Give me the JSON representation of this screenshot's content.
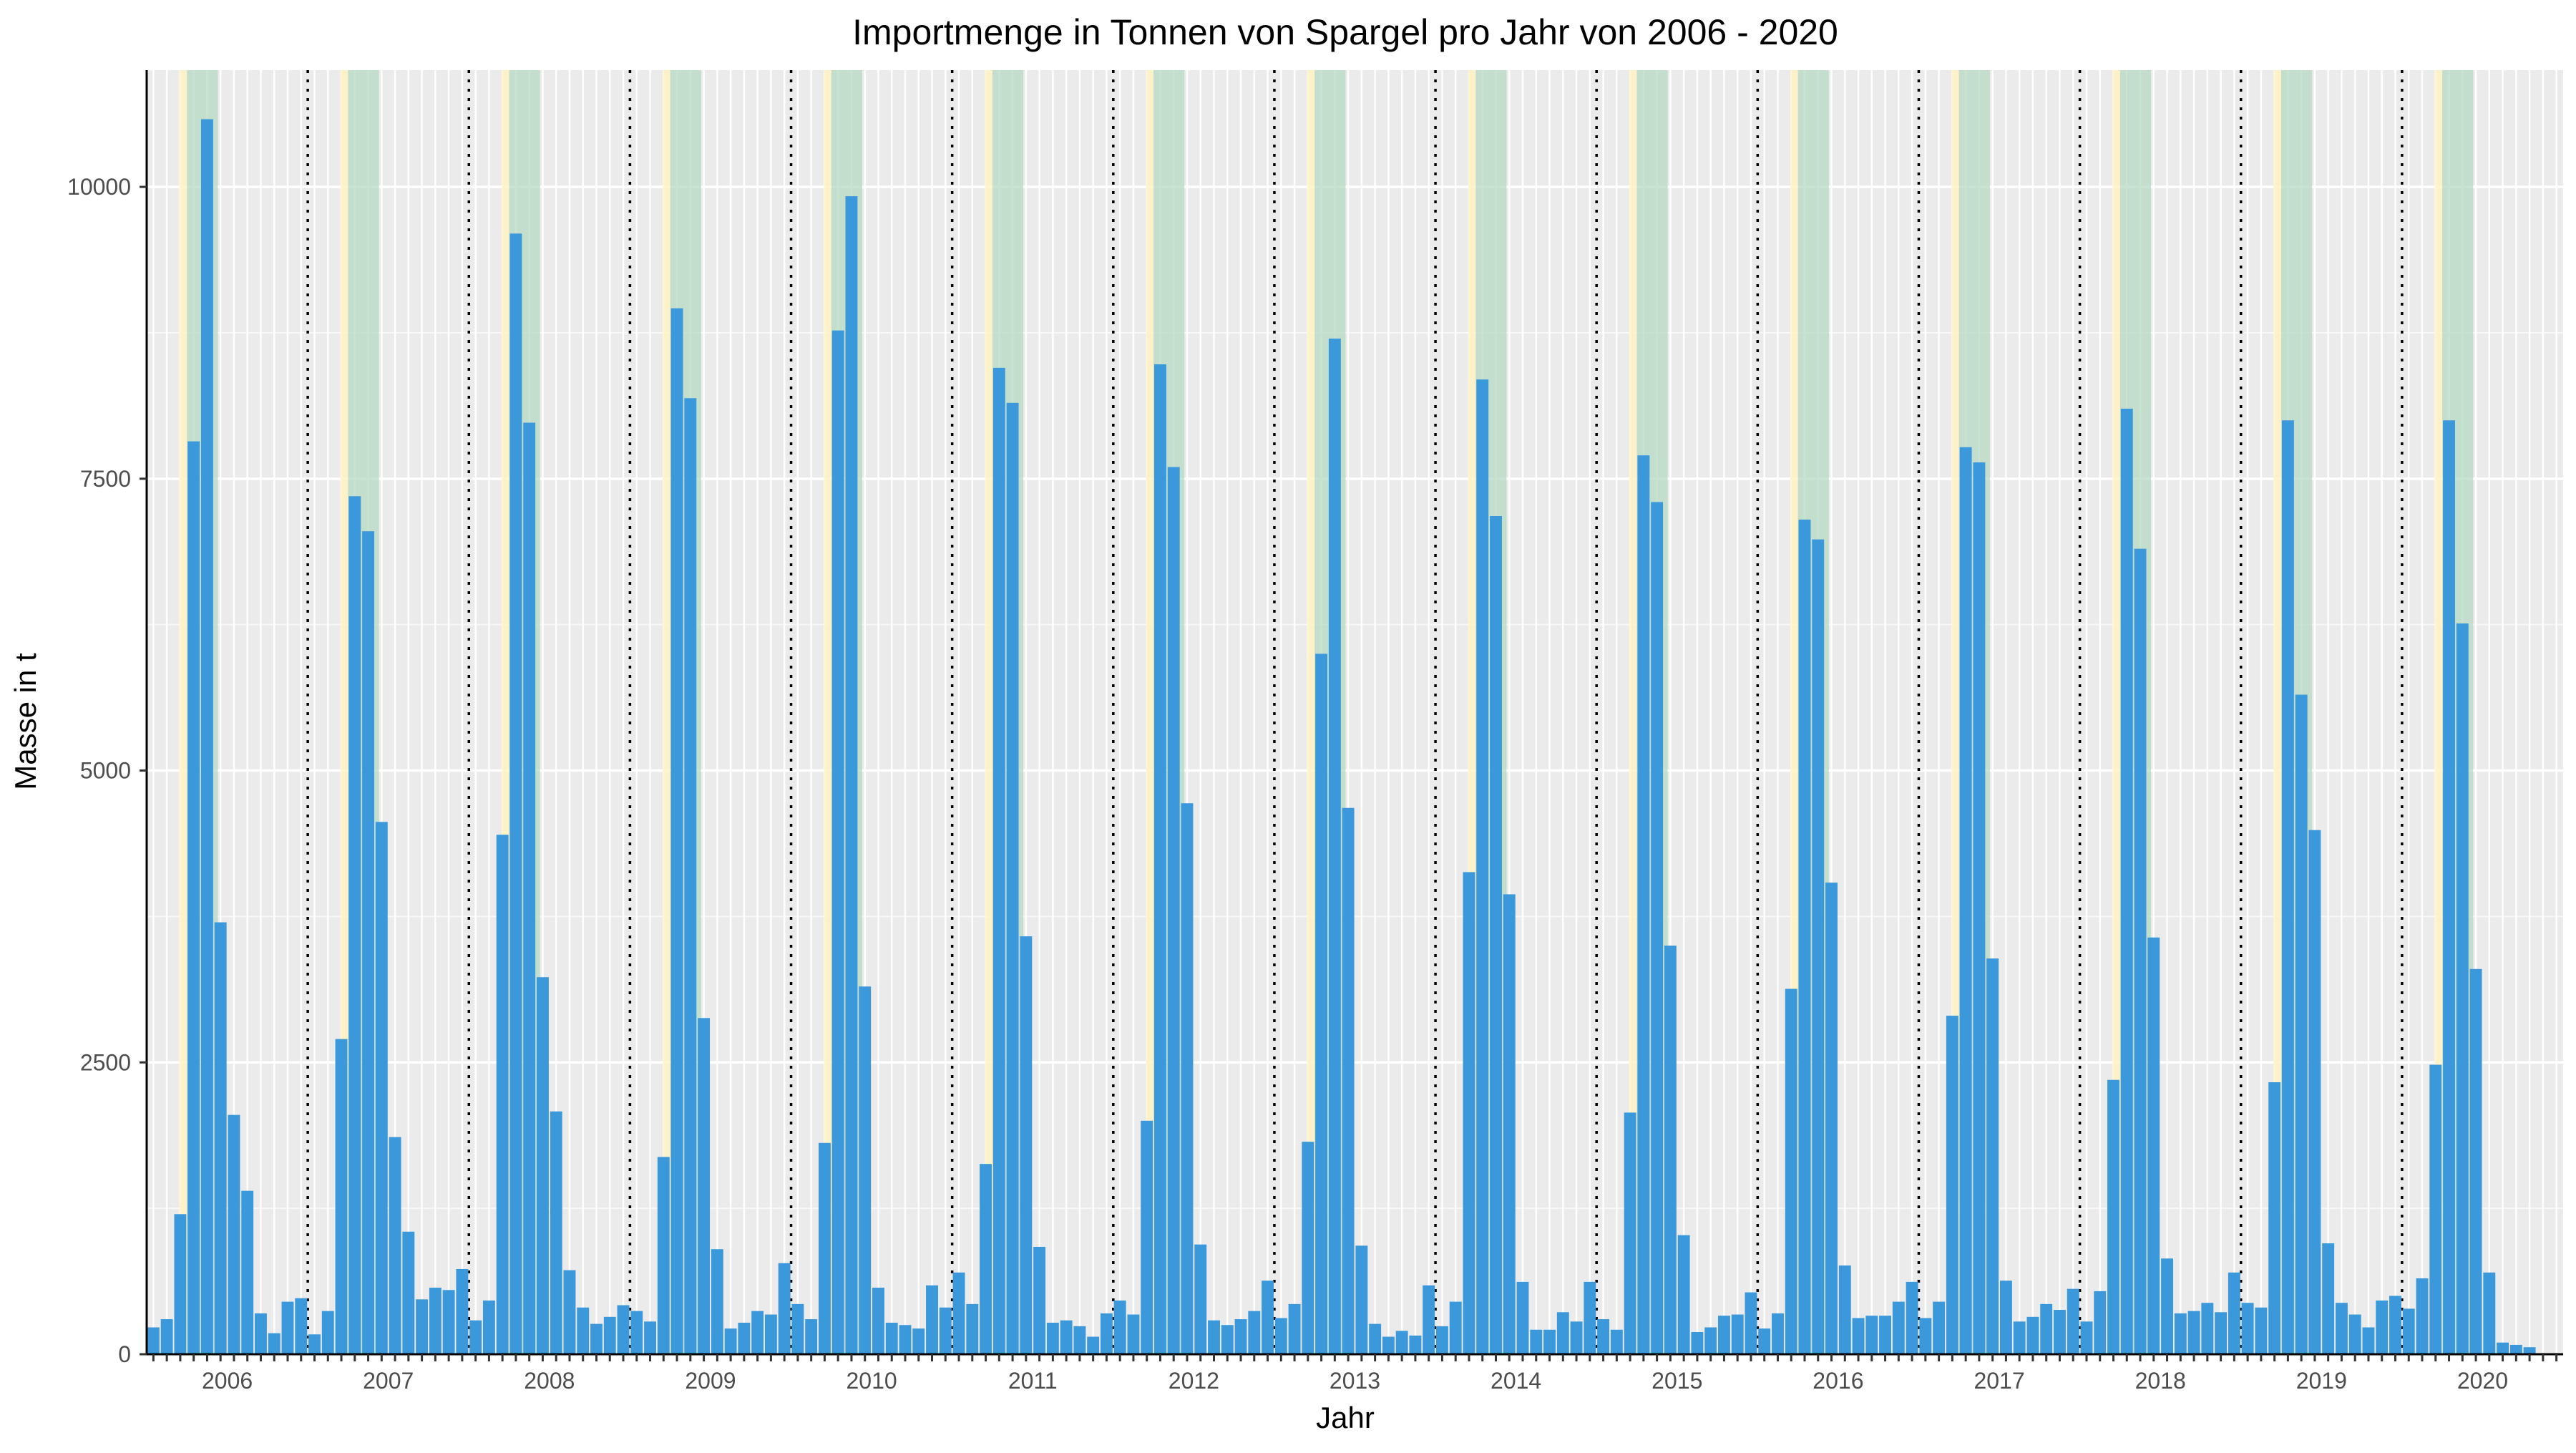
{
  "chart_data": {
    "type": "bar",
    "title": "Importmenge in Tonnen von Spargel pro Jahr von 2006 - 2020",
    "xlabel": "Jahr",
    "ylabel": "Masse in t",
    "ylim": [
      0,
      11000
    ],
    "y_ticks": [
      0,
      2500,
      5000,
      7500,
      10000
    ],
    "x_tick_labels": [
      "2006",
      "2007",
      "2008",
      "2009",
      "2010",
      "2011",
      "2012",
      "2013",
      "2014",
      "2015",
      "2016",
      "2017",
      "2018",
      "2019",
      "2020"
    ],
    "start": "2006-01",
    "months_per_year": 12,
    "grid": true,
    "bar_color": "#3a98db",
    "season_shade": {
      "early_color": "#fff2c2",
      "main_color": "#b5d9c1",
      "early_month": 3,
      "main_months": [
        4,
        6
      ]
    },
    "year_separator": "dotted",
    "values": [
      230,
      300,
      1200,
      7820,
      10580,
      3700,
      2050,
      1400,
      350,
      180,
      450,
      480,
      170,
      370,
      2700,
      7350,
      7050,
      4560,
      1860,
      1050,
      470,
      570,
      550,
      730,
      290,
      460,
      4450,
      9600,
      7980,
      3230,
      2080,
      720,
      400,
      260,
      320,
      420,
      370,
      280,
      1690,
      8960,
      8190,
      2880,
      900,
      220,
      270,
      370,
      340,
      780,
      430,
      300,
      1810,
      8770,
      9920,
      3150,
      570,
      270,
      250,
      220,
      590,
      400,
      700,
      430,
      1630,
      8450,
      8150,
      3580,
      920,
      270,
      290,
      240,
      150,
      350,
      460,
      340,
      2000,
      8480,
      7600,
      4720,
      940,
      290,
      250,
      300,
      370,
      630,
      310,
      430,
      1820,
      6000,
      8700,
      4680,
      930,
      260,
      150,
      200,
      160,
      590,
      240,
      450,
      4130,
      8350,
      7180,
      3940,
      620,
      210,
      210,
      360,
      280,
      620,
      300,
      210,
      2070,
      7700,
      7300,
      3500,
      1020,
      190,
      230,
      330,
      340,
      530,
      220,
      350,
      3130,
      7150,
      6980,
      4040,
      760,
      310,
      330,
      330,
      450,
      620,
      310,
      450,
      2900,
      7770,
      7640,
      3390,
      630,
      280,
      320,
      430,
      380,
      560,
      280,
      540,
      2350,
      8100,
      6900,
      3570,
      820,
      350,
      370,
      440,
      360,
      700,
      440,
      400,
      2330,
      8000,
      5650,
      4490,
      950,
      440,
      340,
      230,
      460,
      500,
      390,
      650,
      2480,
      8000,
      6260,
      3300,
      700,
      100,
      80,
      60
    ]
  }
}
